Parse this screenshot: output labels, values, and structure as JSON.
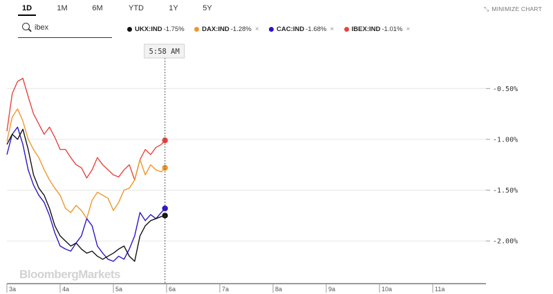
{
  "toolbar": {
    "ranges": [
      "1D",
      "1M",
      "6M",
      "YTD",
      "1Y",
      "5Y"
    ],
    "active_range": "1D",
    "minimize_label": "MINIMIZE CHART"
  },
  "search": {
    "value": "ibex",
    "placeholder": ""
  },
  "legend": [
    {
      "symbol": "UKX:IND",
      "change": "-1.75%",
      "color": "#111111"
    },
    {
      "symbol": "DAX:IND",
      "change": "-1.28%",
      "color": "#f0962a"
    },
    {
      "symbol": "CAC:IND",
      "change": "-1.68%",
      "color": "#2a14c8"
    },
    {
      "symbol": "IBEX:IND",
      "change": "-1.01%",
      "color": "#e8433c"
    }
  ],
  "crosshair": {
    "time_label": "5:58 AM"
  },
  "watermark": "BloombergMarkets",
  "chart_data": {
    "type": "line",
    "x_tick_labels": [
      "3a",
      "4a",
      "5a",
      "6a",
      "7a",
      "8a",
      "9a",
      "10a",
      "11a"
    ],
    "x_range_hours": [
      3,
      12
    ],
    "y_tick_labels": [
      "-0.50%",
      "-1.00%",
      "-1.50%",
      "-2.00%"
    ],
    "y_ticks": [
      -0.5,
      -1.0,
      -1.5,
      -2.0
    ],
    "ylim": [
      -2.42,
      -0.05
    ],
    "grid": true,
    "crosshair_x_hours": 5.97,
    "series": [
      {
        "name": "IBEX:IND",
        "color": "#e8433c",
        "x": [
          3.0,
          3.1,
          3.2,
          3.3,
          3.4,
          3.5,
          3.6,
          3.7,
          3.8,
          3.9,
          4.0,
          4.1,
          4.2,
          4.3,
          4.4,
          4.5,
          4.6,
          4.7,
          4.8,
          4.9,
          5.0,
          5.1,
          5.2,
          5.3,
          5.4,
          5.5,
          5.6,
          5.7,
          5.8,
          5.9,
          5.97
        ],
        "y": [
          -0.92,
          -0.55,
          -0.43,
          -0.4,
          -0.58,
          -0.75,
          -0.85,
          -0.95,
          -0.88,
          -0.98,
          -1.1,
          -1.1,
          -1.18,
          -1.25,
          -1.28,
          -1.38,
          -1.3,
          -1.18,
          -1.25,
          -1.3,
          -1.35,
          -1.37,
          -1.3,
          -1.25,
          -1.4,
          -1.2,
          -1.1,
          -1.15,
          -1.08,
          -1.05,
          -1.01
        ]
      },
      {
        "name": "DAX:IND",
        "color": "#f0962a",
        "x": [
          3.0,
          3.1,
          3.2,
          3.3,
          3.4,
          3.5,
          3.6,
          3.7,
          3.8,
          3.9,
          4.0,
          4.1,
          4.2,
          4.3,
          4.4,
          4.5,
          4.6,
          4.7,
          4.8,
          4.9,
          5.0,
          5.1,
          5.2,
          5.3,
          5.4,
          5.5,
          5.6,
          5.7,
          5.8,
          5.9,
          5.97
        ],
        "y": [
          -1.02,
          -0.78,
          -0.7,
          -0.82,
          -1.0,
          -1.1,
          -1.18,
          -1.3,
          -1.4,
          -1.48,
          -1.55,
          -1.68,
          -1.72,
          -1.65,
          -1.7,
          -1.78,
          -1.6,
          -1.52,
          -1.55,
          -1.58,
          -1.7,
          -1.62,
          -1.5,
          -1.48,
          -1.4,
          -1.2,
          -1.35,
          -1.25,
          -1.3,
          -1.32,
          -1.28
        ]
      },
      {
        "name": "CAC:IND",
        "color": "#2a14c8",
        "x": [
          3.0,
          3.1,
          3.2,
          3.3,
          3.4,
          3.5,
          3.6,
          3.7,
          3.8,
          3.9,
          4.0,
          4.1,
          4.2,
          4.3,
          4.4,
          4.5,
          4.6,
          4.7,
          4.8,
          4.9,
          5.0,
          5.1,
          5.2,
          5.3,
          5.4,
          5.5,
          5.6,
          5.7,
          5.8,
          5.9,
          5.97
        ],
        "y": [
          -1.15,
          -0.95,
          -0.88,
          -1.05,
          -1.3,
          -1.45,
          -1.55,
          -1.62,
          -1.75,
          -1.92,
          -2.05,
          -2.08,
          -2.1,
          -2.02,
          -1.95,
          -1.78,
          -1.85,
          -2.05,
          -2.12,
          -2.18,
          -2.2,
          -2.15,
          -2.18,
          -2.08,
          -1.95,
          -1.72,
          -1.8,
          -1.74,
          -1.78,
          -1.72,
          -1.68
        ]
      },
      {
        "name": "UKX:IND",
        "color": "#111111",
        "x": [
          3.0,
          3.1,
          3.2,
          3.3,
          3.4,
          3.5,
          3.6,
          3.7,
          3.8,
          3.9,
          4.0,
          4.1,
          4.2,
          4.3,
          4.4,
          4.5,
          4.6,
          4.7,
          4.8,
          4.9,
          5.0,
          5.1,
          5.2,
          5.3,
          5.4,
          5.5,
          5.6,
          5.7,
          5.8,
          5.9,
          5.97
        ],
        "y": [
          -1.05,
          -0.95,
          -1.0,
          -0.9,
          -1.1,
          -1.35,
          -1.48,
          -1.55,
          -1.68,
          -1.85,
          -1.95,
          -2.0,
          -2.05,
          -2.02,
          -2.08,
          -2.12,
          -2.1,
          -2.15,
          -2.18,
          -2.15,
          -2.12,
          -2.08,
          -2.05,
          -2.15,
          -2.2,
          -1.95,
          -1.85,
          -1.8,
          -1.78,
          -1.76,
          -1.75
        ]
      }
    ]
  }
}
